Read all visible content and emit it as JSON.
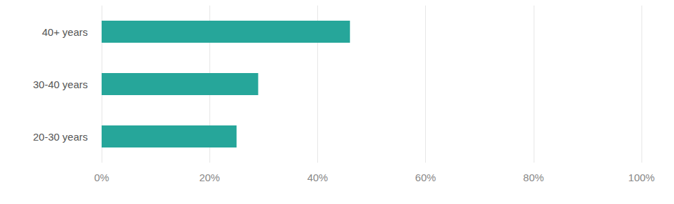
{
  "chart_data": {
    "type": "bar",
    "orientation": "horizontal",
    "categories": [
      "40+ years",
      "30-40 years",
      "20-30 years"
    ],
    "values": [
      46,
      29,
      25
    ],
    "color": "#26a69a",
    "xlim": [
      0,
      100
    ],
    "xticks": [
      {
        "value": 0,
        "label": "0%"
      },
      {
        "value": 20,
        "label": "20%"
      },
      {
        "value": 40,
        "label": "40%"
      },
      {
        "value": 60,
        "label": "60%"
      },
      {
        "value": 80,
        "label": "80%"
      },
      {
        "value": 100,
        "label": "100%"
      }
    ],
    "grid": true
  }
}
